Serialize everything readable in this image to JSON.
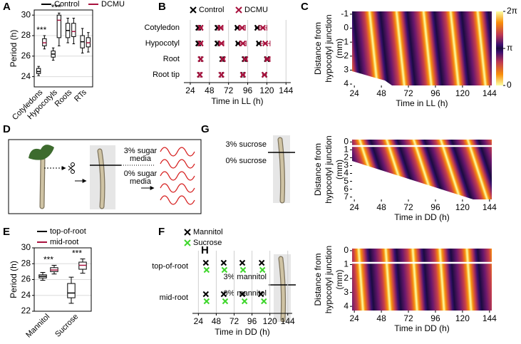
{
  "panels": [
    "A",
    "B",
    "C",
    "D",
    "E",
    "F",
    "G",
    "H"
  ],
  "diagram_d": {
    "upper": [
      "3% sugar",
      "media"
    ],
    "lower": [
      "0% sugar",
      "media"
    ]
  },
  "diagram_g": {
    "upper": "3% sucrose",
    "lower": "0% sucrose"
  },
  "diagram_h": {
    "upper": "3% mannitol",
    "lower": "0% mannitol"
  },
  "chart_data": [
    {
      "type": "box",
      "ylabel": "Period (h)",
      "categories": [
        "Cotyledons",
        "Hypocotyls",
        "Roots",
        "RTs"
      ],
      "annotations": [
        "***",
        "***",
        null,
        null
      ],
      "series": [
        {
          "name": "Control",
          "color": "#000000",
          "values": [
            [
              24.1,
              24.3,
              24.5,
              24.8,
              25.0
            ],
            [
              25.6,
              25.9,
              26.2,
              26.5,
              26.8
            ],
            [
              27.3,
              27.8,
              28.5,
              29.2,
              29.7
            ],
            [
              26.3,
              26.8,
              27.4,
              28.0,
              28.7
            ]
          ]
        },
        {
          "name": "DCMU",
          "color": "#a8123e",
          "values": [
            [
              26.7,
              27.0,
              27.3,
              27.7,
              28.0
            ],
            [
              27.0,
              27.8,
              29.5,
              30.0,
              30.2
            ],
            [
              27.2,
              27.9,
              28.4,
              29.2,
              29.7
            ],
            [
              26.4,
              26.9,
              27.3,
              27.8,
              28.3
            ]
          ]
        }
      ],
      "ylim": [
        23,
        30.5
      ],
      "yticks": [
        24,
        26,
        28,
        30
      ],
      "grid": true,
      "legend": "top"
    },
    {
      "type": "peaks",
      "xlabel": "Time in LL (h)",
      "categories": [
        "Cotyledon",
        "Hypocotyl",
        "Root",
        "Root tip"
      ],
      "series": [
        {
          "name": "Control",
          "color": "#000000",
          "values": [
            [
              34,
              58,
              83,
              108
            ],
            [
              34,
              58,
              84,
              110
            ],
            [
              37,
              64,
              92,
              120
            ],
            [
              36,
              63,
              90,
              117
            ]
          ],
          "errors": [
            [
              1,
              1,
              2,
              2
            ],
            [
              1,
              1,
              2,
              2
            ],
            [
              1,
              1,
              1,
              2
            ],
            [
              1,
              1,
              1,
              2
            ]
          ]
        },
        {
          "name": "DCMU",
          "color": "#a8123e",
          "values": [
            [
              37,
              62,
              89,
              115
            ],
            [
              37,
              63,
              90,
              118
            ],
            [
              37,
              65,
              93,
              121
            ],
            [
              36,
              63,
              90,
              117
            ]
          ],
          "errors": [
            [
              2,
              3,
              4,
              5
            ],
            [
              2,
              3,
              4,
              6
            ],
            [
              1,
              2,
              2,
              3
            ],
            [
              1,
              1,
              2,
              2
            ]
          ]
        }
      ],
      "xlim": [
        16,
        150
      ],
      "xticks": [
        24,
        48,
        72,
        96,
        120,
        144
      ],
      "grid": true,
      "legend": "top"
    },
    {
      "type": "heatmap",
      "xlabel": "Time in LL (h)",
      "ylabel": [
        "Distance from",
        "hypocotyl junction",
        "(mm)"
      ],
      "xlim": [
        22,
        146
      ],
      "xticks": [
        24,
        48,
        72,
        96,
        120,
        144
      ],
      "ylim": [
        -1.2,
        4.1
      ],
      "yticks": [
        -1,
        0,
        1,
        2,
        3,
        4
      ],
      "colorbar": {
        "lim": [
          0,
          6.28319
        ],
        "ticks": [
          {
            "value": 6.28319,
            "label": "2π"
          },
          {
            "value": 3.14159,
            "label": "π"
          },
          0
        ]
      }
    },
    {
      "type": "box",
      "ylabel": "Period (h)",
      "categories": [
        "Mannitol",
        "Sucrose"
      ],
      "annotations": [
        "***",
        "***"
      ],
      "series": [
        {
          "name": "top-of-root",
          "color": "#000000",
          "values": [
            [
              25.9,
              26.2,
              26.4,
              26.6,
              26.9
            ],
            [
              23.0,
              23.7,
              24.3,
              25.5,
              26.3
            ]
          ]
        },
        {
          "name": "mid-root",
          "color": "#a8123e",
          "values": [
            [
              26.7,
              27.0,
              27.2,
              27.5,
              27.8
            ],
            [
              26.8,
              27.3,
              27.8,
              28.2,
              28.6
            ]
          ]
        }
      ],
      "ylim": [
        22,
        30
      ],
      "yticks": [
        22,
        24,
        26,
        28,
        30
      ],
      "grid": true,
      "legend": "top-left"
    },
    {
      "type": "peaks",
      "xlabel": "Time in DD (h)",
      "categories": [
        "top-of-root",
        "mid-root"
      ],
      "series": [
        {
          "name": "Mannitol",
          "color": "#000000",
          "values": [
            [
              34,
              58,
              83,
              109
            ],
            [
              34,
              58,
              83,
              108
            ]
          ]
        },
        {
          "name": "Sucrose",
          "color": "#3ed62b",
          "values": [
            [
              35,
              59,
              84,
              110
            ],
            [
              35,
              60,
              86,
              112
            ]
          ]
        }
      ],
      "xlim": [
        16,
        150
      ],
      "xticks": [
        24,
        48,
        72,
        96,
        120,
        144
      ],
      "grid": true,
      "legend": "top-left"
    },
    {
      "type": "heatmap",
      "xlabel": "Time in DD (h)",
      "ylabel": [
        "Distance from",
        "hypocotyl junction",
        "(mm)"
      ],
      "xlim": [
        22,
        146
      ],
      "xticks": [
        24,
        48,
        72,
        96,
        120,
        144
      ],
      "ylim": [
        -0.3,
        7.3
      ],
      "yticks": [
        0,
        1,
        2,
        3,
        4,
        5,
        6,
        7
      ]
    },
    {
      "type": "heatmap",
      "xlabel": "Time in DD (h)",
      "ylabel": [
        "Distance from",
        "hypocotyl junction",
        "(mm)"
      ],
      "xlim": [
        22,
        146
      ],
      "xticks": [
        24,
        48,
        72,
        96,
        120,
        144
      ],
      "ylim": [
        -0.15,
        4.3
      ],
      "yticks": [
        0,
        1,
        2,
        3,
        4
      ]
    }
  ]
}
